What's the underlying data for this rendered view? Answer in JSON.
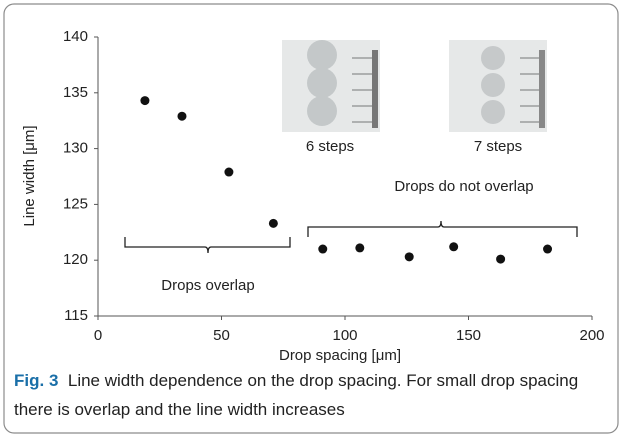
{
  "chart_data": {
    "type": "scatter",
    "xlabel": "Drop spacing [μm]",
    "ylabel": "Line width [μm]",
    "x": [
      19,
      34,
      53,
      71,
      91,
      106,
      126,
      144,
      163,
      182
    ],
    "values": [
      134.3,
      132.9,
      127.9,
      123.3,
      121,
      121.1,
      120.3,
      121.2,
      120.1,
      121
    ],
    "color": "#111111",
    "xlim": [
      0,
      200
    ],
    "xticks": [
      0,
      50,
      100,
      150,
      200
    ],
    "ylim": [
      115,
      140
    ],
    "yticks": [
      115,
      120,
      125,
      130,
      135,
      140
    ],
    "grid": false,
    "annotations": [
      "6 steps",
      "7 steps",
      "Drops do not overlap",
      "Drops overlap"
    ]
  },
  "caption": {
    "label": "Fig. 3",
    "text": "Line width dependence on the drop spacing. For small drop spacing there is overlap and the line width increases"
  }
}
